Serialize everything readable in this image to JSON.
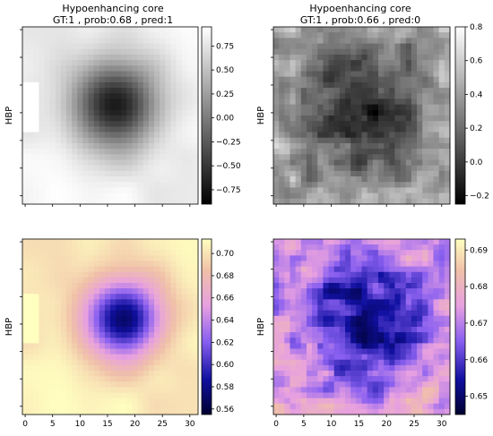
{
  "figure": {
    "panels": [
      {
        "id": "tl",
        "title_line1": "Hypoenhancing core",
        "title_line2": "GT:1 , prob:0.68 , pred:1",
        "ylabel": "HBP",
        "colormap": "gray",
        "colorbar_ticks": [
          "0.75",
          "0.50",
          "0.25",
          "0.00",
          "−0.25",
          "−0.50",
          "−0.75"
        ],
        "show_xticklabels": false
      },
      {
        "id": "tr",
        "title_line1": "Hypoenhancing core",
        "title_line2": "GT:1 , prob:0.66 , pred:0",
        "ylabel": "HBP",
        "colormap": "gray",
        "colorbar_ticks": [
          "0.8",
          "0.6",
          "0.4",
          "0.2",
          "0.0",
          "−0.2"
        ],
        "show_xticklabels": false
      },
      {
        "id": "bl",
        "title_line1": "",
        "title_line2": "",
        "ylabel": "HBP",
        "colormap": "gnuplot2",
        "colorbar_ticks": [
          "0.70",
          "0.68",
          "0.66",
          "0.64",
          "0.62",
          "0.60",
          "0.58",
          "0.56"
        ],
        "show_xticklabels": true
      },
      {
        "id": "br",
        "title_line1": "",
        "title_line2": "",
        "ylabel": "HBP",
        "colormap": "gnuplot2",
        "colorbar_ticks": [
          "0.69",
          "0.68",
          "0.67",
          "0.66",
          "0.65"
        ],
        "show_xticklabels": true
      }
    ]
  },
  "chart_data": [
    {
      "type": "heatmap",
      "title": "Hypoenhancing core\nGT:1 , prob:0.68 , pred:1",
      "ylabel": "HBP",
      "grid_size": [
        32,
        32
      ],
      "colorbar_range": [
        -0.9,
        0.95
      ],
      "pattern": "single dark blob",
      "blob_center": [
        16.5,
        13.5
      ],
      "background_value": 0.55,
      "min_value": -0.9,
      "max_value": 0.95
    },
    {
      "type": "heatmap",
      "title": "Hypoenhancing core\nGT:1 , prob:0.66 , pred:0",
      "ylabel": "HBP",
      "grid_size": [
        32,
        32
      ],
      "colorbar_range": [
        -0.25,
        0.8
      ],
      "pattern": "mottled dark region",
      "min_value": -0.25,
      "max_value": 0.8
    },
    {
      "type": "heatmap",
      "title": "",
      "ylabel": "HBP",
      "grid_size": [
        32,
        32
      ],
      "x_ticks": [
        0,
        5,
        10,
        15,
        20,
        25,
        30
      ],
      "colorbar_range": [
        0.555,
        0.713
      ],
      "pattern": "single dark blob",
      "blob_center": [
        18,
        14
      ],
      "min_value": 0.555,
      "max_value": 0.713
    },
    {
      "type": "heatmap",
      "title": "",
      "ylabel": "HBP",
      "grid_size": [
        32,
        32
      ],
      "x_ticks": [
        0,
        5,
        10,
        15,
        20,
        25,
        30
      ],
      "colorbar_range": [
        0.645,
        0.693
      ],
      "pattern": "mottled dark region",
      "min_value": 0.645,
      "max_value": 0.693
    }
  ]
}
